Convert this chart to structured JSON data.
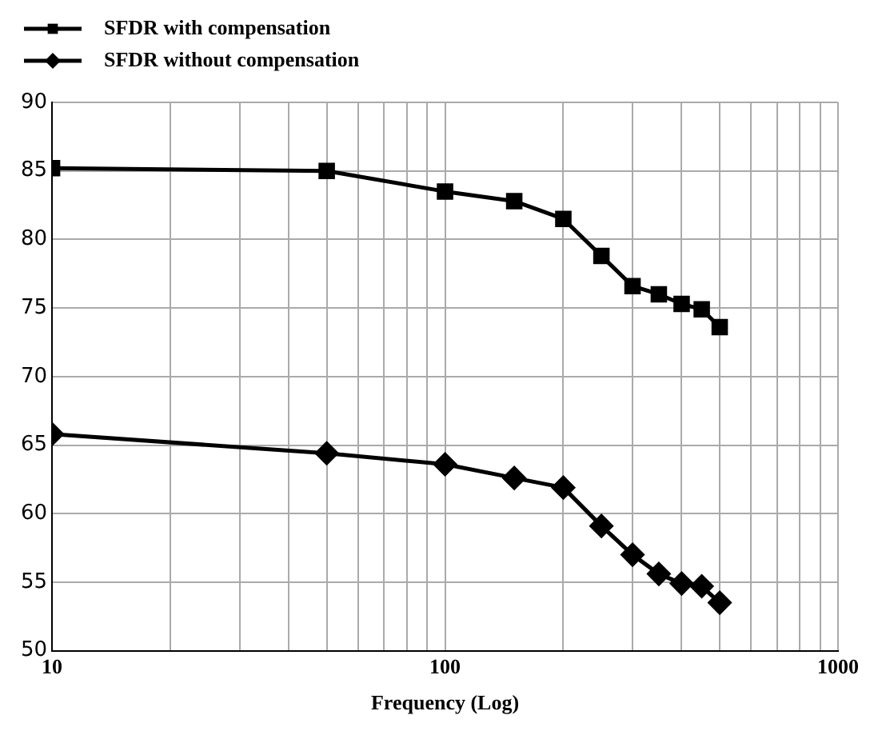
{
  "chart_data": {
    "type": "line",
    "xlabel": "Frequency (Log)",
    "log": "x",
    "grid": true,
    "legend": "top left",
    "line_style": "solid",
    "x": [
      10,
      50,
      100,
      150,
      200,
      250,
      300,
      350,
      400,
      450,
      500
    ],
    "xlim": [
      10,
      1000
    ],
    "xticks": [
      10,
      {
        "value": 20,
        "label": null
      },
      {
        "value": 30,
        "label": null
      },
      {
        "value": 40,
        "label": null
      },
      {
        "value": 50,
        "label": null
      },
      {
        "value": 60,
        "label": null
      },
      {
        "value": 70,
        "label": null
      },
      {
        "value": 80,
        "label": null
      },
      {
        "value": 90,
        "label": null
      },
      100,
      {
        "value": 200,
        "label": null
      },
      {
        "value": 300,
        "label": null
      },
      {
        "value": 400,
        "label": null
      },
      {
        "value": 500,
        "label": null
      },
      {
        "value": 600,
        "label": null
      },
      {
        "value": 700,
        "label": null
      },
      {
        "value": 800,
        "label": null
      },
      {
        "value": 900,
        "label": null
      },
      1000
    ],
    "ylim": [
      50,
      90
    ],
    "yticks": [
      50,
      55,
      60,
      65,
      70,
      75,
      80,
      85,
      90
    ],
    "series": [
      {
        "name": "SFDR with compensation",
        "color": "#000000",
        "marker": "square",
        "values": [
          85.2,
          85,
          83.5,
          82.8,
          81.5,
          78.8,
          76.6,
          76,
          75.3,
          74.9,
          73.6
        ]
      },
      {
        "name": "SFDR without compensation",
        "color": "#000000",
        "marker": "diamond",
        "values": [
          65.8,
          64.4,
          63.6,
          62.6,
          61.9,
          59.1,
          57,
          55.6,
          54.9,
          54.7,
          53.5
        ]
      }
    ]
  }
}
